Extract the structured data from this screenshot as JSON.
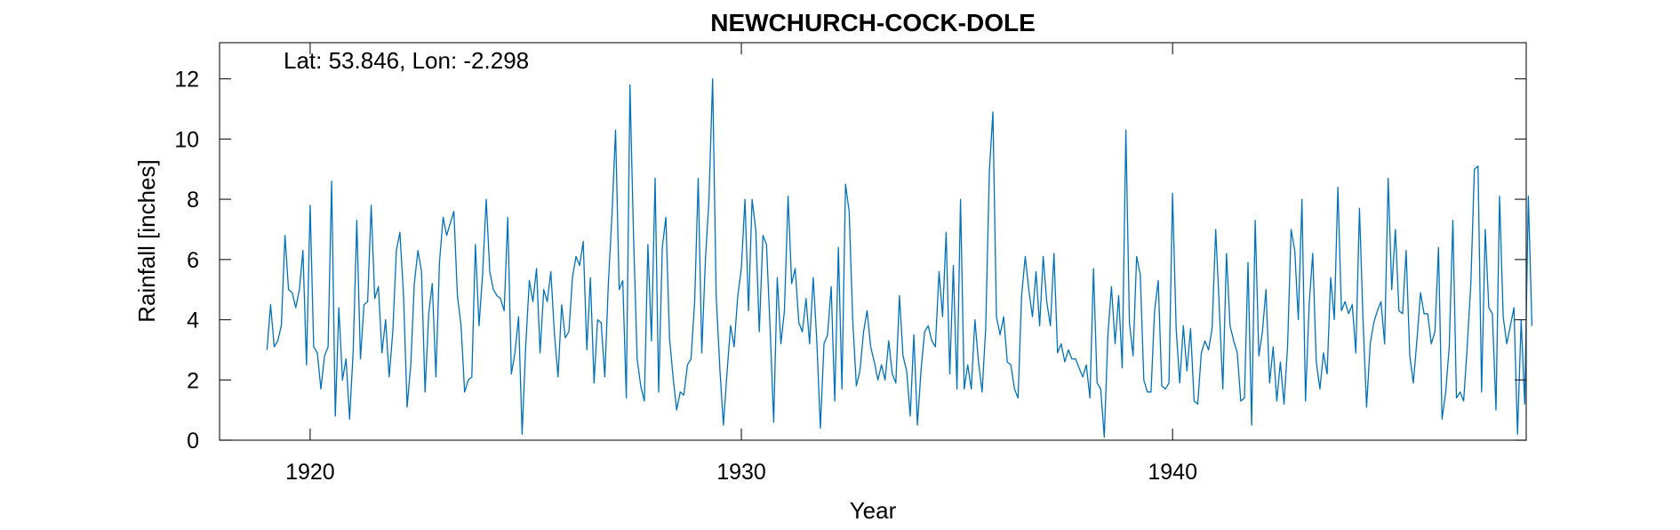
{
  "chart_data": {
    "type": "line",
    "title": "NEWCHURCH-COCK-DOLE",
    "annotation": "Lat: 53.846, Lon: -2.298",
    "xlabel": "Year",
    "ylabel": "Rainfall [inches]",
    "xlim": [
      1917.9,
      1948.2
    ],
    "ylim": [
      0,
      13.2
    ],
    "xticks": [
      1920,
      1930,
      1940
    ],
    "xtick_labels": [
      "1920",
      "1930",
      "1940"
    ],
    "yticks": [
      0,
      2,
      4,
      6,
      8,
      10,
      12
    ],
    "ytick_labels": [
      "0",
      "2",
      "4",
      "6",
      "8",
      "10",
      "12"
    ],
    "grid": false,
    "x_start": 1919.0,
    "x_step": 0.08333,
    "series": [
      {
        "color": "#0072BD",
        "values": [
          3.0,
          4.5,
          3.1,
          3.3,
          3.8,
          6.8,
          5.0,
          4.9,
          4.4,
          5.0,
          6.3,
          2.5,
          7.8,
          3.1,
          2.9,
          1.7,
          2.8,
          3.1,
          8.6,
          0.8,
          4.4,
          2.0,
          2.7,
          0.7,
          3.0,
          7.3,
          2.7,
          4.5,
          4.6,
          7.8,
          4.7,
          5.1,
          2.9,
          4.0,
          2.1,
          3.6,
          6.3,
          6.9,
          4.8,
          1.1,
          2.5,
          5.2,
          6.3,
          5.6,
          1.6,
          4.2,
          5.2,
          2.1,
          5.9,
          7.4,
          6.8,
          7.2,
          7.6,
          4.8,
          3.8,
          1.6,
          2.0,
          2.1,
          6.5,
          3.8,
          5.5,
          8.0,
          5.6,
          5.0,
          4.8,
          4.7,
          4.3,
          7.4,
          2.2,
          2.9,
          4.1,
          0.2,
          3.1,
          5.3,
          4.6,
          5.7,
          2.9,
          5.0,
          4.6,
          5.6,
          3.5,
          2.1,
          4.5,
          3.4,
          3.6,
          5.4,
          6.1,
          5.8,
          6.6,
          3.0,
          5.4,
          1.9,
          4.0,
          3.9,
          2.1,
          5.2,
          7.5,
          10.3,
          5.0,
          5.3,
          1.4,
          11.8,
          6.8,
          2.7,
          1.8,
          1.3,
          6.5,
          3.3,
          8.7,
          1.6,
          6.4,
          7.4,
          3.4,
          2.1,
          1.0,
          1.6,
          1.5,
          2.5,
          2.7,
          4.6,
          8.7,
          2.9,
          6.0,
          8.0,
          12.0,
          4.8,
          2.4,
          0.5,
          2.2,
          3.8,
          3.1,
          4.8,
          5.7,
          8.0,
          4.3,
          8.0,
          7.0,
          3.6,
          6.8,
          6.5,
          3.7,
          0.6,
          5.4,
          3.2,
          4.3,
          8.1,
          5.2,
          5.7,
          3.9,
          3.6,
          4.7,
          3.2,
          5.4,
          3.3,
          0.4,
          3.2,
          3.5,
          5.1,
          1.3,
          6.4,
          1.7,
          8.5,
          7.6,
          4.0,
          1.8,
          2.3,
          3.6,
          4.3,
          3.1,
          2.6,
          2.0,
          2.5,
          2.0,
          3.3,
          2.2,
          1.9,
          4.8,
          2.8,
          2.3,
          0.8,
          3.5,
          0.5,
          2.3,
          3.6,
          3.8,
          3.3,
          3.1,
          5.6,
          4.1,
          6.9,
          2.2,
          5.8,
          1.7,
          8.0,
          1.7,
          2.5,
          1.7,
          4.0,
          2.6,
          1.6,
          3.7,
          8.9,
          10.9,
          4.1,
          3.5,
          4.1,
          2.6,
          2.5,
          1.7,
          1.4,
          4.8,
          6.1,
          5.0,
          4.1,
          5.6,
          3.8,
          6.1,
          4.6,
          3.8,
          6.2,
          2.9,
          3.2,
          2.6,
          3.0,
          2.7,
          2.7,
          2.4,
          2.1,
          2.5,
          1.4,
          5.7,
          1.9,
          1.7,
          0.1,
          3.5,
          5.1,
          3.2,
          4.8,
          2.4,
          10.3,
          3.9,
          2.8,
          6.1,
          5.5,
          2.0,
          1.6,
          1.6,
          4.3,
          5.3,
          1.8,
          1.7,
          1.9,
          8.2,
          3.7,
          1.9,
          3.8,
          2.3,
          3.7,
          1.3,
          1.2,
          2.9,
          3.3,
          3.0,
          3.7,
          7.0,
          4.4,
          1.7,
          6.2,
          3.8,
          3.3,
          2.9,
          1.3,
          1.4,
          5.9,
          0.5,
          7.3,
          2.8,
          3.6,
          5.0,
          1.9,
          3.1,
          1.3,
          2.6,
          1.2,
          3.1,
          7.0,
          6.3,
          4.0,
          8.0,
          1.3,
          4.5,
          6.2,
          2.6,
          1.7,
          2.9,
          2.2,
          5.4,
          4.0,
          8.4,
          4.3,
          4.6,
          4.2,
          4.5,
          2.9,
          7.7,
          4.0,
          1.1,
          3.2,
          3.9,
          4.3,
          4.6,
          3.2,
          8.7,
          5.0,
          7.0,
          4.3,
          4.2,
          6.3,
          2.8,
          1.9,
          3.3,
          4.9,
          4.2,
          4.2,
          3.2,
          3.6,
          6.4,
          0.7,
          1.6,
          3.1,
          7.3,
          1.4,
          1.6,
          1.3,
          3.1,
          5.2,
          9.0,
          9.1,
          1.6,
          7.0,
          4.4,
          4.2,
          1.0,
          8.1,
          4.1,
          3.2,
          3.8,
          4.4,
          0.2,
          4.0,
          1.2,
          8.1,
          3.8
        ]
      }
    ]
  }
}
